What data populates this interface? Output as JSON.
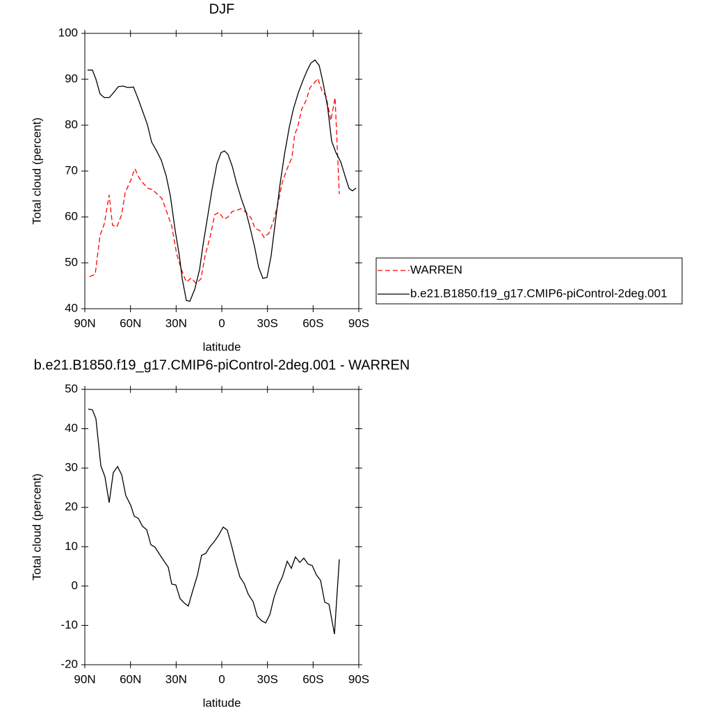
{
  "chart_data": [
    {
      "type": "line",
      "title": "DJF",
      "x_label": "latitude",
      "y_label": "Total cloud (percent)",
      "xlim": [
        90,
        -90
      ],
      "xticks": [
        {
          "value": 90,
          "label": "90N"
        },
        {
          "value": 60,
          "label": "60N"
        },
        {
          "value": 30,
          "label": "30N"
        },
        0,
        {
          "value": -30,
          "label": "30S"
        },
        {
          "value": -60,
          "label": "60S"
        },
        {
          "value": -90,
          "label": "90S"
        }
      ],
      "ylim": [
        40,
        100
      ],
      "yticks": [
        40,
        50,
        60,
        70,
        80,
        90,
        100
      ],
      "legend": "outside-right",
      "series": [
        {
          "name": "WARREN",
          "color": "#ff0000",
          "line_style": "dashed",
          "x": [
            86.8,
            83.2,
            80,
            77.2,
            74,
            71.8,
            69,
            65.8,
            63.5,
            59.8,
            57.1,
            54.3,
            51.6,
            48.4,
            45.7,
            42.5,
            39.3,
            36.1,
            32.9,
            29.7,
            26.5,
            23.3,
            20.1,
            16.9,
            13.7,
            11,
            7.8,
            4.6,
            1.8,
            -1.4,
            -4.1,
            -6.9,
            -10.1,
            -12.8,
            -16,
            -19.2,
            -21.9,
            -25.1,
            -27.8,
            -31,
            -33.8,
            -37,
            -39.7,
            -42.9,
            -46.1,
            -47.9,
            -49.8,
            -52.5,
            -55.3,
            -58,
            -60.3,
            -63.1,
            -65.8,
            -68.5,
            -71.7,
            -74.4,
            -77.2
          ],
          "values": [
            47,
            47.5,
            56,
            58.5,
            64.8,
            58.2,
            57.8,
            60.5,
            65.3,
            68,
            70.5,
            68.5,
            67.3,
            66.2,
            66,
            65,
            64,
            61,
            58,
            52,
            48.5,
            45.8,
            46.7,
            45.5,
            46.5,
            51.5,
            55.5,
            60.5,
            61,
            59.5,
            60,
            61.2,
            61.5,
            61.8,
            61,
            59.8,
            57.5,
            57,
            55.5,
            56.5,
            59,
            63,
            67.5,
            70.5,
            73,
            78,
            79.5,
            83.5,
            85.3,
            88.2,
            89,
            90.2,
            87.5,
            86.3,
            81,
            86,
            65
          ]
        },
        {
          "name": "b.e21.B1850.f19_g17.CMIP6-piControl-2deg.001",
          "color": "#000000",
          "line_style": "solid",
          "x": [
            88.2,
            85,
            82.7,
            80,
            77.2,
            74,
            71.3,
            68,
            64.9,
            61.7,
            58,
            54.8,
            52,
            48.9,
            46.1,
            43,
            39.8,
            36.6,
            33.8,
            30.6,
            27.9,
            26,
            23.3,
            21,
            17.8,
            14.6,
            12.3,
            9.6,
            6.4,
            3.2,
            0.5,
            -1.8,
            -4.1,
            -6.9,
            -9.6,
            -12.8,
            -16,
            -18.7,
            -21.5,
            -24.2,
            -27,
            -29.7,
            -32.4,
            -35.6,
            -38.4,
            -41.1,
            -44.3,
            -47,
            -50.2,
            -53.4,
            -56.2,
            -58.5,
            -61.2,
            -64,
            -66.7,
            -69.5,
            -72.2,
            -75,
            -78.1,
            -80.9,
            -83.6,
            -85.9,
            -88.2
          ],
          "values": [
            92,
            92,
            90,
            86.8,
            86,
            86,
            87,
            88.4,
            88.5,
            88.2,
            88.3,
            85.6,
            83,
            80.1,
            76.3,
            74.5,
            72.4,
            69,
            64.6,
            57,
            51.6,
            46.5,
            41.8,
            41.6,
            44.2,
            48.5,
            54,
            59.5,
            66,
            71.6,
            74,
            74.4,
            73.6,
            71,
            67.5,
            64,
            61,
            57.5,
            53.5,
            49,
            46.6,
            46.8,
            51.5,
            60,
            67.5,
            73.5,
            79.5,
            83.5,
            87,
            89.8,
            92,
            93.5,
            94.2,
            93,
            89,
            84,
            76.5,
            74,
            72,
            69,
            66.2,
            65.7,
            66.3
          ]
        }
      ]
    },
    {
      "type": "line",
      "title": "b.e21.B1850.f19_g17.CMIP6-piControl-2deg.001 - WARREN",
      "x_label": "latitude",
      "y_label": "Total cloud (percent)",
      "xlim": [
        90,
        -90
      ],
      "xticks": [
        {
          "value": 90,
          "label": "90N"
        },
        {
          "value": 60,
          "label": "60N"
        },
        {
          "value": 30,
          "label": "30N"
        },
        0,
        {
          "value": -30,
          "label": "30S"
        },
        {
          "value": -60,
          "label": "60S"
        },
        {
          "value": -90,
          "label": "90S"
        }
      ],
      "ylim": [
        -20,
        50
      ],
      "yticks": [
        -20,
        -10,
        0,
        10,
        20,
        30,
        40,
        50
      ],
      "series": [
        {
          "color": "#000000",
          "line_style": "solid",
          "x": [
            87.7,
            85,
            82.7,
            79.5,
            76.8,
            74,
            71.3,
            68.5,
            65.8,
            63.1,
            59.8,
            57.6,
            54.8,
            52.1,
            49.3,
            46.6,
            43.9,
            41.1,
            38.4,
            35.2,
            32.9,
            30.2,
            27.4,
            24.7,
            22,
            19.2,
            16,
            13.3,
            10.5,
            7.8,
            5.1,
            2.3,
            -0.9,
            -3.6,
            -6.4,
            -9.1,
            -11.9,
            -14.6,
            -17.4,
            -20.6,
            -23.3,
            -26.1,
            -28.8,
            -31.6,
            -34.3,
            -37,
            -39.8,
            -43,
            -45.7,
            -48.4,
            -51.2,
            -53.9,
            -56.7,
            -59.4,
            -62.1,
            -64.9,
            -67.6,
            -70.4,
            -74,
            -77.2
          ],
          "values": [
            45,
            44.8,
            42.5,
            30.6,
            27.8,
            21.2,
            28.8,
            30.4,
            28.3,
            23,
            20.5,
            17.8,
            17.2,
            15.2,
            14.3,
            10.5,
            9.9,
            8.2,
            6.6,
            4.8,
            0.5,
            0.3,
            -3.2,
            -4.3,
            -5.1,
            -1.3,
            2.8,
            7.8,
            8.3,
            10,
            11.2,
            12.8,
            15,
            14.2,
            10.3,
            6.1,
            2.3,
            0.7,
            -2.1,
            -4,
            -7.7,
            -8.8,
            -9.4,
            -7.2,
            -2.9,
            0.1,
            2.3,
            6.3,
            4.5,
            7.4,
            6,
            7.1,
            5.6,
            5.2,
            2.9,
            1.4,
            -4.1,
            -4.6,
            -12.2,
            6.8
          ]
        }
      ]
    }
  ]
}
